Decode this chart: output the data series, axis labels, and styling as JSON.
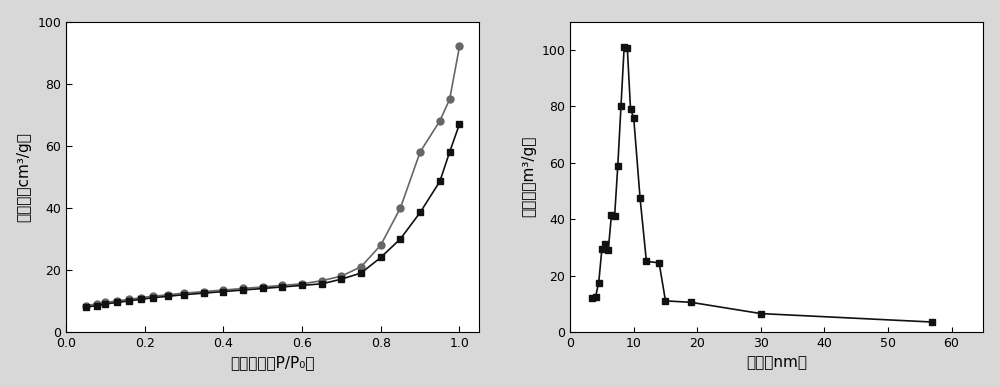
{
  "left_chart": {
    "ylabel": "吸收量（cm³/g）",
    "xlabel": "相对压力（P/P₀）",
    "ylim": [
      0,
      100
    ],
    "xlim": [
      0.0,
      1.05
    ],
    "yticks": [
      0,
      20,
      40,
      60,
      80,
      100
    ],
    "xticks": [
      0.0,
      0.2,
      0.4,
      0.6,
      0.8,
      1.0
    ],
    "series1_x": [
      0.05,
      0.08,
      0.1,
      0.13,
      0.16,
      0.19,
      0.22,
      0.26,
      0.3,
      0.35,
      0.4,
      0.45,
      0.5,
      0.55,
      0.6,
      0.65,
      0.7,
      0.75,
      0.8,
      0.85,
      0.9,
      0.95,
      0.975,
      1.0
    ],
    "series1_y": [
      8.5,
      9.0,
      9.5,
      10.0,
      10.5,
      11.0,
      11.5,
      12.0,
      12.5,
      13.0,
      13.5,
      14.0,
      14.5,
      15.0,
      15.5,
      16.5,
      18.0,
      21.0,
      28.0,
      40.0,
      58.0,
      68.0,
      75.0,
      92.0
    ],
    "series2_x": [
      0.05,
      0.08,
      0.1,
      0.13,
      0.16,
      0.19,
      0.22,
      0.26,
      0.3,
      0.35,
      0.4,
      0.45,
      0.5,
      0.55,
      0.6,
      0.65,
      0.7,
      0.75,
      0.8,
      0.85,
      0.9,
      0.95,
      0.975,
      1.0
    ],
    "series2_y": [
      8.0,
      8.5,
      9.0,
      9.5,
      10.0,
      10.5,
      11.0,
      11.5,
      12.0,
      12.5,
      13.0,
      13.5,
      14.0,
      14.5,
      15.0,
      15.5,
      17.0,
      19.0,
      24.0,
      30.0,
      38.5,
      48.5,
      58.0,
      67.0
    ],
    "color1": "#666666",
    "color2": "#111111",
    "marker1": "o",
    "marker2": "s"
  },
  "right_chart": {
    "ylabel": "孔体积（m³/g）",
    "xlabel": "孔径（nm）",
    "ylim": [
      0,
      110
    ],
    "xlim": [
      0,
      65
    ],
    "yticks": [
      0,
      20,
      40,
      60,
      80,
      100
    ],
    "xticks": [
      0,
      10,
      20,
      30,
      40,
      50,
      60
    ],
    "x": [
      3.5,
      4.0,
      4.5,
      5.0,
      5.5,
      6.0,
      6.5,
      7.0,
      7.5,
      8.0,
      8.5,
      9.0,
      9.5,
      10.0,
      11.0,
      12.0,
      14.0,
      15.0,
      19.0,
      30.0,
      57.0
    ],
    "y": [
      12.0,
      12.5,
      17.5,
      29.5,
      31.0,
      29.0,
      41.5,
      41.0,
      59.0,
      80.0,
      101.0,
      100.5,
      79.0,
      76.0,
      47.5,
      25.0,
      24.5,
      11.0,
      10.5,
      6.5,
      3.5
    ],
    "color": "#111111",
    "marker": "s"
  },
  "plot_bg": "#ffffff",
  "fig_bg": "#d8d8d8",
  "font_size_label": 11,
  "font_size_tick": 9,
  "markersize": 5,
  "linewidth": 1.2
}
